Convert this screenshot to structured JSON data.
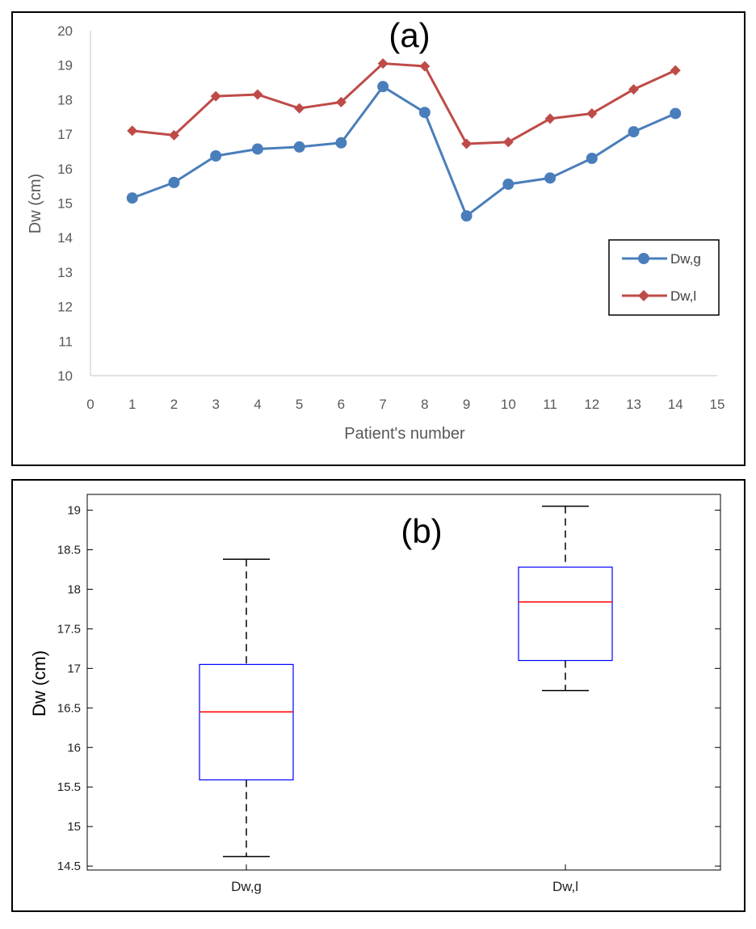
{
  "chart_data": [
    {
      "type": "line",
      "title": "(a)",
      "xlabel": "Patient's number",
      "ylabel": "Dw (cm)",
      "xlim": [
        0,
        15
      ],
      "ylim": [
        10,
        20
      ],
      "xticks": [
        "0",
        "1",
        "2",
        "3",
        "4",
        "5",
        "6",
        "7",
        "8",
        "9",
        "10",
        "11",
        "12",
        "13",
        "14",
        "15"
      ],
      "yticks": [
        "10",
        "11",
        "12",
        "13",
        "14",
        "15",
        "16",
        "17",
        "18",
        "19",
        "20"
      ],
      "grid": false,
      "legend_position": "right",
      "x": [
        1,
        2,
        3,
        4,
        5,
        6,
        7,
        8,
        9,
        10,
        11,
        12,
        13,
        14
      ],
      "series": [
        {
          "name": "Dw,g",
          "color": "#4a7ebb",
          "marker": "circle",
          "values": [
            15.15,
            15.6,
            16.37,
            16.57,
            16.63,
            16.75,
            18.38,
            17.63,
            14.63,
            15.55,
            15.73,
            16.3,
            17.07,
            17.6
          ]
        },
        {
          "name": "Dw,l",
          "color": "#be4b48",
          "marker": "diamond",
          "values": [
            17.1,
            16.97,
            18.1,
            18.15,
            17.75,
            17.93,
            19.05,
            18.97,
            16.72,
            16.77,
            17.45,
            17.6,
            18.3,
            18.85
          ]
        }
      ]
    },
    {
      "type": "box",
      "title": "(b)",
      "xlabel": "",
      "ylabel": "Dw (cm)",
      "ylim": [
        14.45,
        19.2
      ],
      "yticks": [
        "14.5",
        "15",
        "15.5",
        "16",
        "16.5",
        "17",
        "17.5",
        "18",
        "18.5",
        "19"
      ],
      "grid": false,
      "box_color": "#0000ff",
      "median_color": "#ff0000",
      "boxes": [
        {
          "label": "Dw,g",
          "min": 14.62,
          "q1": 15.59,
          "median": 16.45,
          "q3": 17.05,
          "max": 18.38
        },
        {
          "label": "Dw,l",
          "min": 16.72,
          "q1": 17.1,
          "median": 17.84,
          "q3": 18.28,
          "max": 19.05
        }
      ]
    }
  ]
}
